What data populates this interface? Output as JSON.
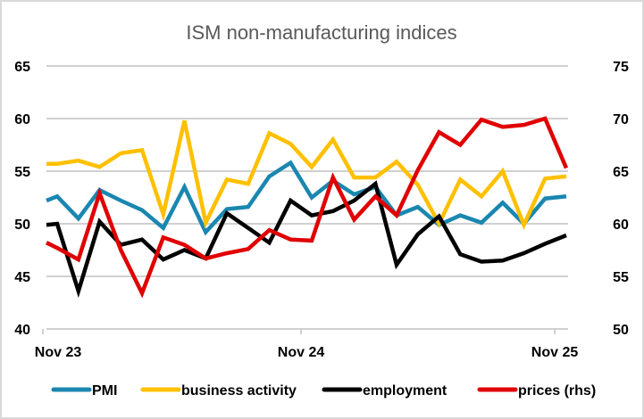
{
  "chart_data": {
    "type": "line",
    "title": "ISM non-manufacturing indices",
    "xlabel": "",
    "ylabel": "",
    "x_tick_labels": [
      "Nov 23",
      "Nov 24",
      "Nov 25"
    ],
    "x_tick_index": [
      0,
      12,
      24
    ],
    "x_count": 26,
    "x_offset": 0.55,
    "ylim": [
      40,
      65
    ],
    "y_ticks": [
      "40",
      "45",
      "50",
      "55",
      "60",
      "65"
    ],
    "y_tick_values": [
      40,
      45,
      50,
      55,
      60,
      65
    ],
    "y2lim": [
      50,
      75
    ],
    "y2_ticks": [
      "50",
      "55",
      "60",
      "65",
      "70",
      "75"
    ],
    "y2_tick_values": [
      50,
      55,
      60,
      65,
      70,
      75
    ],
    "grid": true,
    "legend_position": "bottom",
    "series": [
      {
        "name": "PMI",
        "axis": "left",
        "color": "#1a87b0",
        "values": [
          52.2,
          52.6,
          50.5,
          53.2,
          52.2,
          51.3,
          49.6,
          53.5,
          49.2,
          51.4,
          51.6,
          54.5,
          55.8,
          52.5,
          54.1,
          52.8,
          53.5,
          50.8,
          51.6,
          49.9,
          50.8,
          50.1,
          52.0,
          50.0,
          52.4,
          52.6
        ]
      },
      {
        "name": "business activity",
        "axis": "left",
        "color": "#ffc000",
        "values": [
          55.7,
          55.7,
          56.0,
          55.4,
          56.7,
          57.0,
          50.9,
          59.8,
          50.1,
          54.2,
          53.8,
          58.6,
          57.6,
          55.4,
          58.0,
          54.4,
          54.4,
          55.9,
          53.7,
          50.0,
          54.2,
          52.6,
          55.0,
          49.9,
          54.3,
          54.5
        ]
      },
      {
        "name": "employment",
        "axis": "left",
        "color": "#000000",
        "values": [
          49.9,
          50.0,
          43.6,
          50.2,
          48.0,
          48.5,
          46.6,
          47.5,
          46.7,
          51.0,
          49.6,
          48.2,
          52.2,
          50.8,
          51.2,
          52.2,
          53.8,
          46.1,
          49.0,
          50.7,
          47.1,
          46.4,
          46.5,
          47.2,
          48.1,
          48.9
        ]
      },
      {
        "name": "prices (rhs)",
        "axis": "right",
        "color": "#e00000",
        "values": [
          58.2,
          57.7,
          56.6,
          62.9,
          57.5,
          53.4,
          58.7,
          58.0,
          56.7,
          57.2,
          57.6,
          59.4,
          58.5,
          58.4,
          64.4,
          60.4,
          62.6,
          60.8,
          65.1,
          68.7,
          67.5,
          69.9,
          69.2,
          69.4,
          70.0,
          65.3
        ]
      }
    ]
  }
}
